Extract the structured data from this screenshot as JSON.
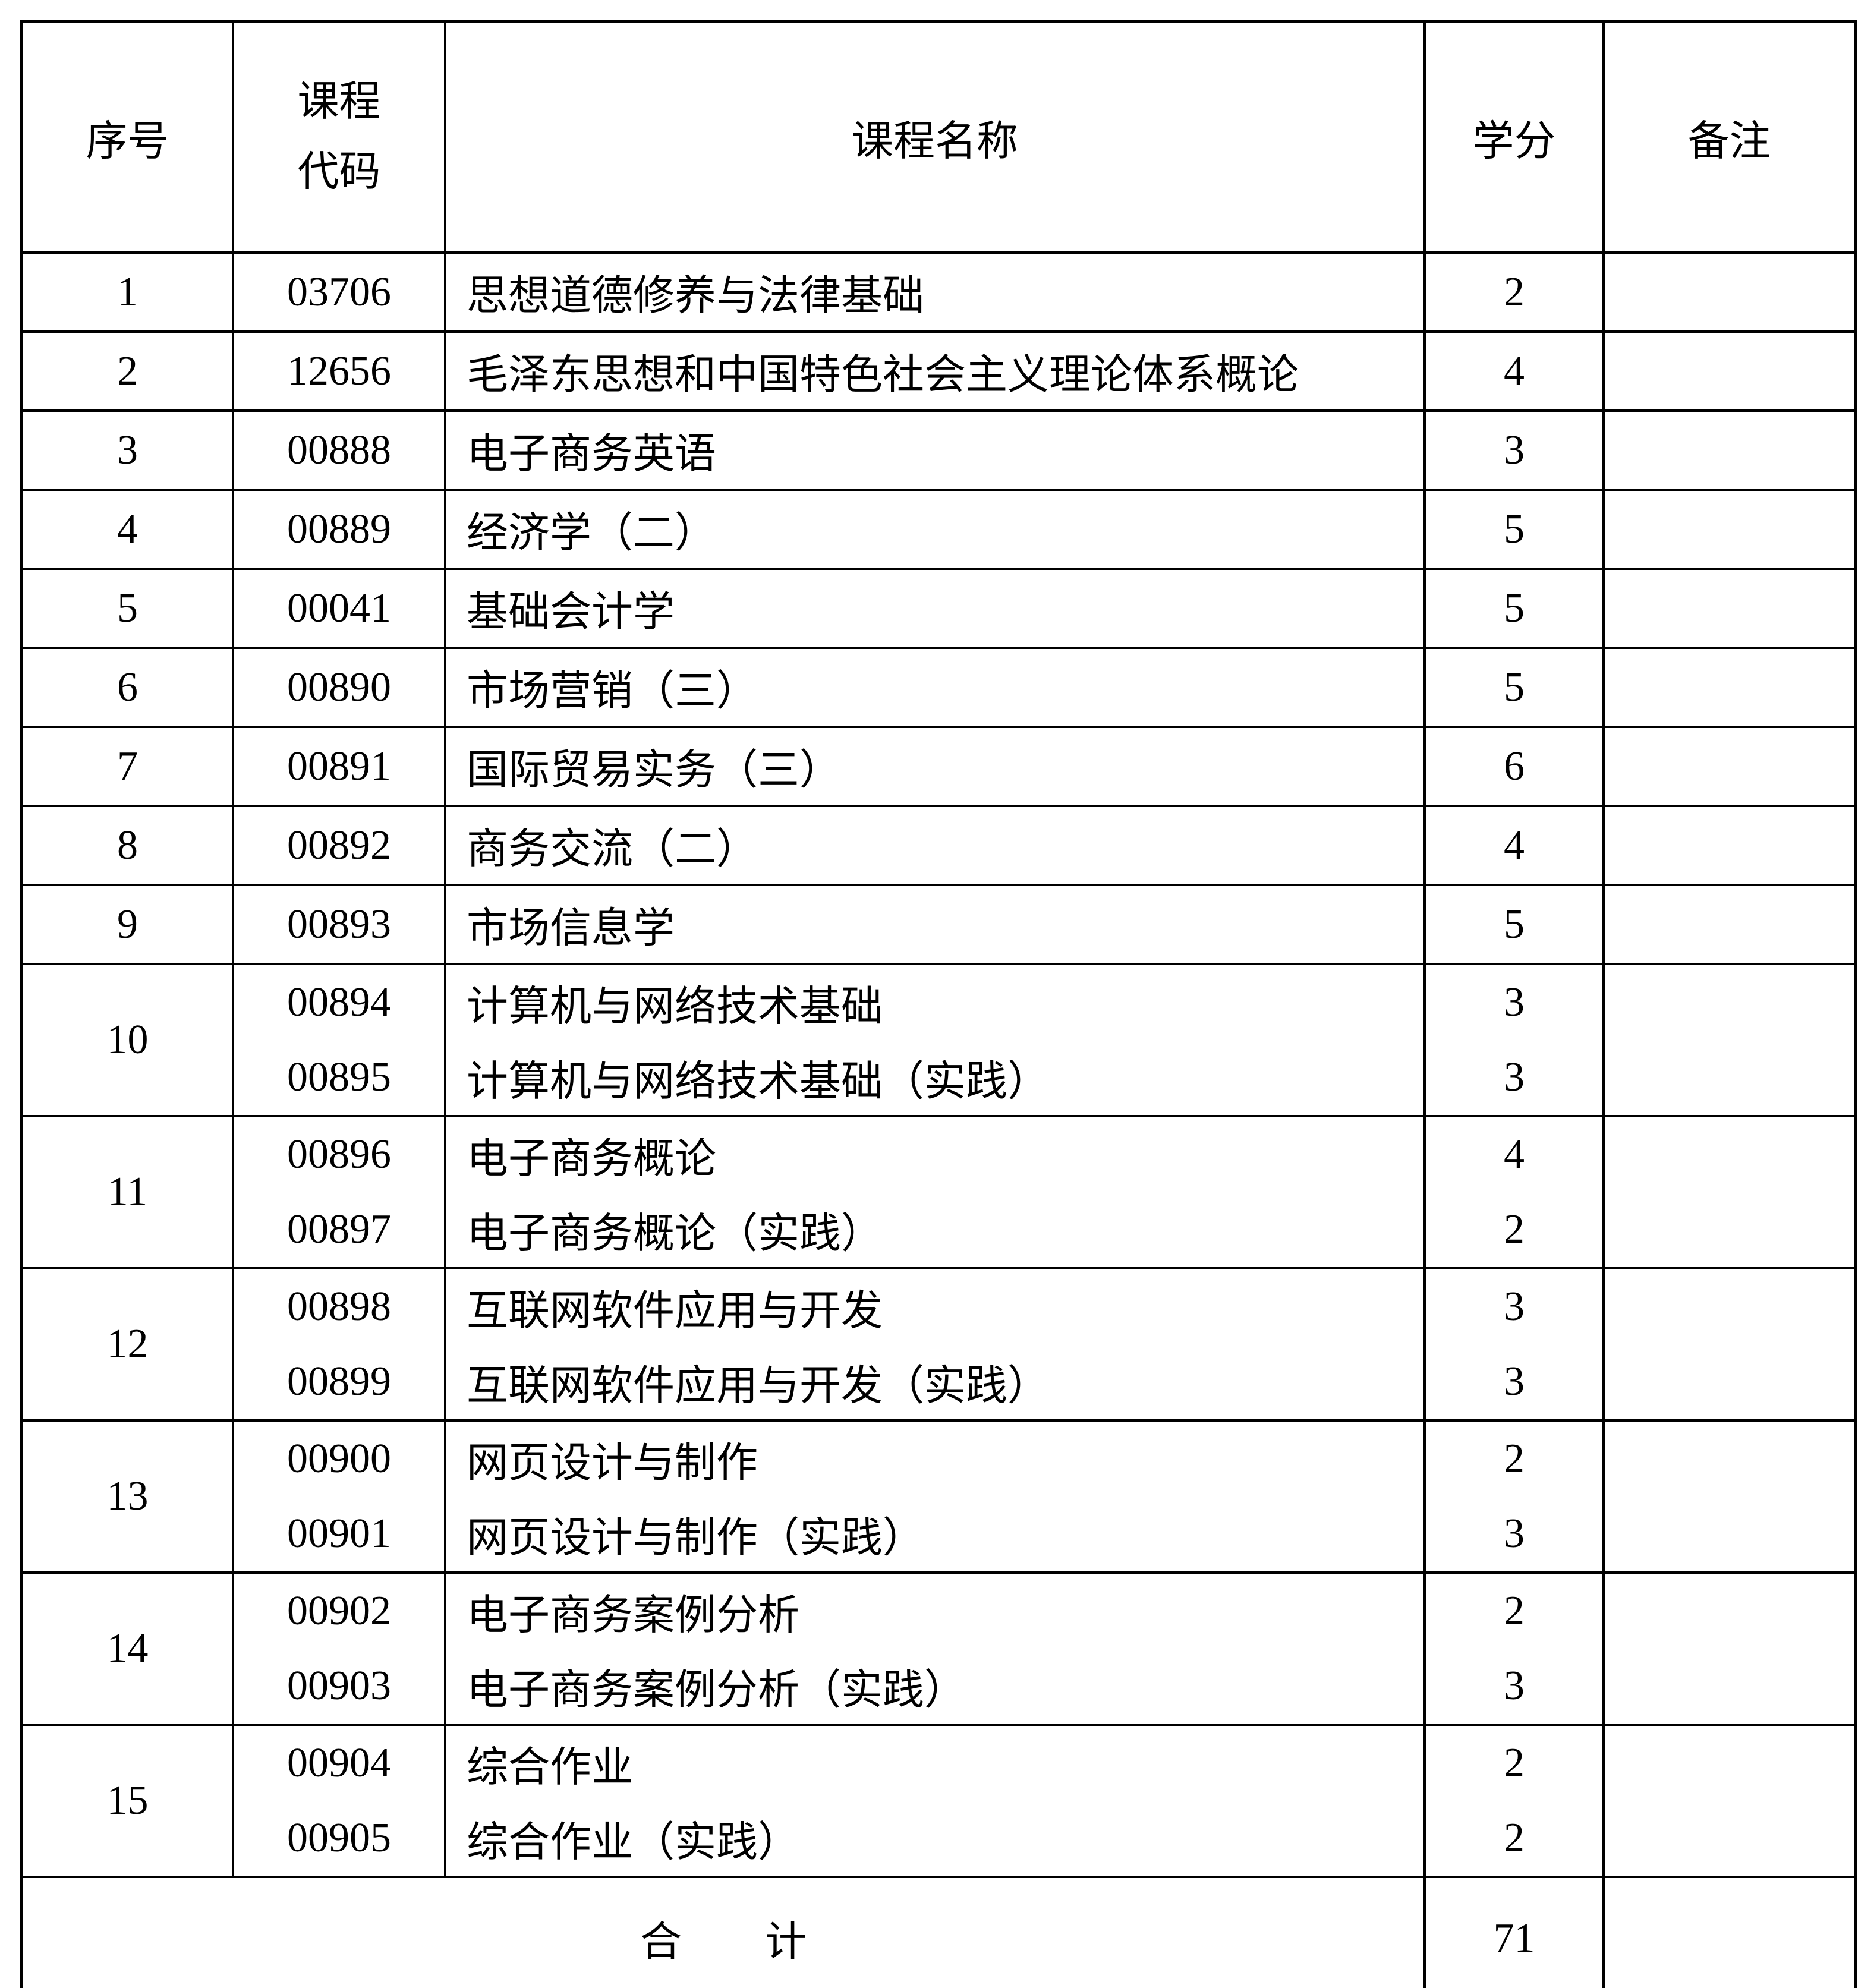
{
  "table": {
    "columns": [
      {
        "key": "index",
        "label": "序号"
      },
      {
        "key": "code",
        "label_lines": [
          "课程",
          "代码"
        ]
      },
      {
        "key": "name",
        "label": "课程名称"
      },
      {
        "key": "credits",
        "label": "学分"
      },
      {
        "key": "remark",
        "label": "备注"
      }
    ],
    "rows": [
      {
        "index": "1",
        "remark": "",
        "courses": [
          {
            "code": "03706",
            "name": "思想道德修养与法律基础",
            "credits": "2"
          }
        ]
      },
      {
        "index": "2",
        "remark": "",
        "courses": [
          {
            "code": "12656",
            "name": "毛泽东思想和中国特色社会主义理论体系概论",
            "credits": "4"
          }
        ]
      },
      {
        "index": "3",
        "remark": "",
        "courses": [
          {
            "code": "00888",
            "name": "电子商务英语",
            "credits": "3"
          }
        ]
      },
      {
        "index": "4",
        "remark": "",
        "courses": [
          {
            "code": "00889",
            "name": "经济学（二）",
            "credits": "5"
          }
        ]
      },
      {
        "index": "5",
        "remark": "",
        "courses": [
          {
            "code": "00041",
            "name": "基础会计学",
            "credits": "5"
          }
        ]
      },
      {
        "index": "6",
        "remark": "",
        "courses": [
          {
            "code": "00890",
            "name": "市场营销（三）",
            "credits": "5"
          }
        ]
      },
      {
        "index": "7",
        "remark": "",
        "courses": [
          {
            "code": "00891",
            "name": "国际贸易实务（三）",
            "credits": "6"
          }
        ]
      },
      {
        "index": "8",
        "remark": "",
        "courses": [
          {
            "code": "00892",
            "name": "商务交流（二）",
            "credits": "4"
          }
        ]
      },
      {
        "index": "9",
        "remark": "",
        "courses": [
          {
            "code": "00893",
            "name": "市场信息学",
            "credits": "5"
          }
        ]
      },
      {
        "index": "10",
        "remark": "",
        "courses": [
          {
            "code": "00894",
            "name": "计算机与网络技术基础",
            "credits": "3"
          },
          {
            "code": "00895",
            "name": "计算机与网络技术基础（实践）",
            "credits": "3"
          }
        ]
      },
      {
        "index": "11",
        "remark": "",
        "courses": [
          {
            "code": "00896",
            "name": "电子商务概论",
            "credits": "4"
          },
          {
            "code": "00897",
            "name": "电子商务概论（实践）",
            "credits": "2"
          }
        ]
      },
      {
        "index": "12",
        "remark": "",
        "courses": [
          {
            "code": "00898",
            "name": "互联网软件应用与开发",
            "credits": "3"
          },
          {
            "code": "00899",
            "name": "互联网软件应用与开发（实践）",
            "credits": "3"
          }
        ]
      },
      {
        "index": "13",
        "remark": "",
        "courses": [
          {
            "code": "00900",
            "name": "网页设计与制作",
            "credits": "2"
          },
          {
            "code": "00901",
            "name": "网页设计与制作（实践）",
            "credits": "3"
          }
        ]
      },
      {
        "index": "14",
        "remark": "",
        "courses": [
          {
            "code": "00902",
            "name": "电子商务案例分析",
            "credits": "2"
          },
          {
            "code": "00903",
            "name": "电子商务案例分析（实践）",
            "credits": "3"
          }
        ]
      },
      {
        "index": "15",
        "remark": "",
        "courses": [
          {
            "code": "00904",
            "name": "综合作业",
            "credits": "2"
          },
          {
            "code": "00905",
            "name": "综合作业（实践）",
            "credits": "2"
          }
        ]
      }
    ],
    "total": {
      "label": "合　　计",
      "credits": "71",
      "remark": ""
    }
  }
}
